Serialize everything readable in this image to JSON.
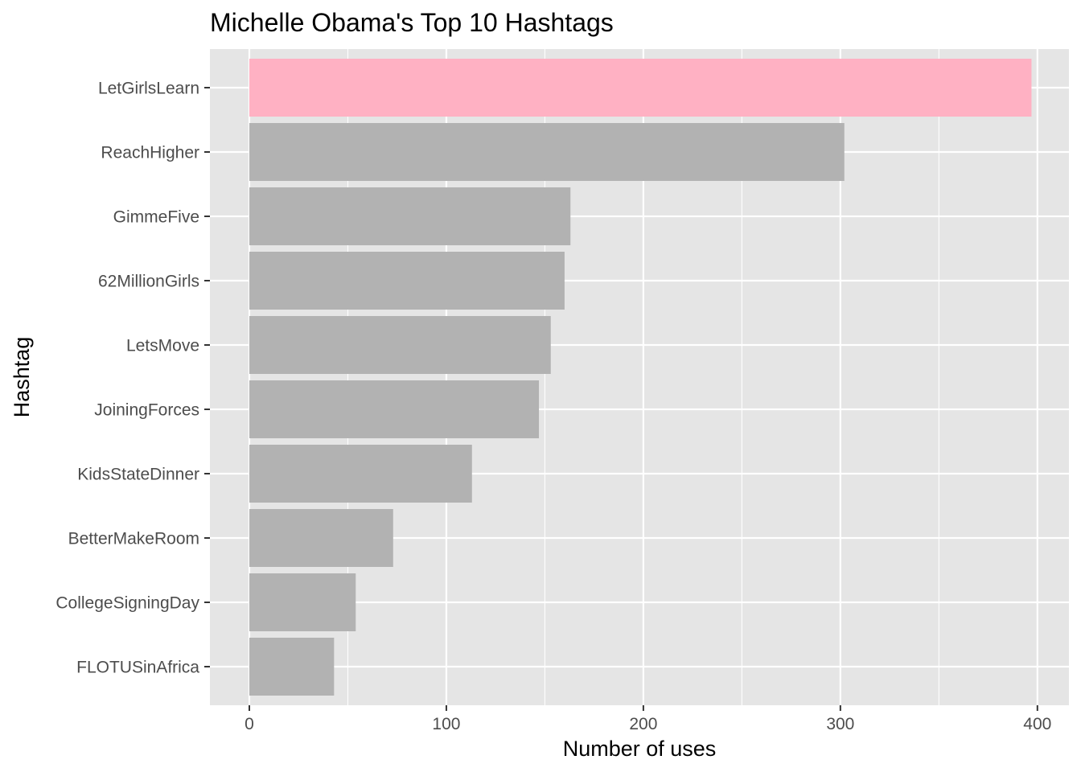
{
  "chart_data": {
    "type": "bar",
    "orientation": "horizontal",
    "title": "Michelle Obama's Top 10 Hashtags",
    "xlabel": "Number of uses",
    "ylabel": "Hashtag",
    "categories": [
      "LetGirlsLearn",
      "ReachHigher",
      "GimmeFive",
      "62MillionGirls",
      "LetsMove",
      "JoiningForces",
      "KidsStateDinner",
      "BetterMakeRoom",
      "CollegeSigningDay",
      "FLOTUSinAfrica"
    ],
    "values": [
      397,
      302,
      163,
      160,
      153,
      147,
      113,
      73,
      54,
      43
    ],
    "highlight_category": "LetGirlsLearn",
    "xlim": [
      -20,
      416
    ],
    "x_ticks": [
      0,
      100,
      200,
      300,
      400
    ],
    "x_minor_ticks": [
      50,
      150,
      250,
      350
    ],
    "grid": true,
    "legend": "none",
    "colors": {
      "panel_background": "#e5e5e5",
      "grid_line": "#ffffff",
      "bar_default": "#b2b2b2",
      "bar_highlight": "#ffb1c3",
      "tick_text": "#4d4d4d",
      "tick_mark": "#333333",
      "text": "#000000"
    }
  }
}
